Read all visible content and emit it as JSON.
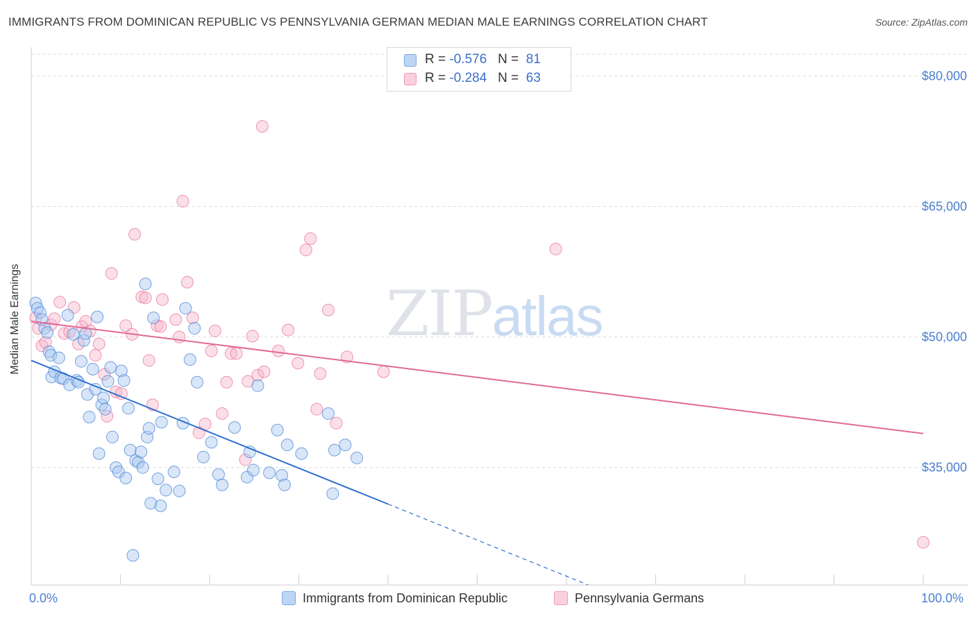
{
  "header": {
    "title": "IMMIGRANTS FROM DOMINICAN REPUBLIC VS PENNSYLVANIA GERMAN MEDIAN MALE EARNINGS CORRELATION CHART",
    "source": "Source: ZipAtlas.com"
  },
  "watermark": {
    "zip": "ZIP",
    "atlas": "atlas"
  },
  "legend_top": {
    "rows": [
      {
        "r_label": "R =",
        "r_value": "-0.576",
        "n_label": "N =",
        "n_value": "81",
        "color": "#a9c8f0"
      },
      {
        "r_label": "R =",
        "r_value": "-0.284",
        "n_label": "N =",
        "n_value": "63",
        "color": "#f6b8cb"
      }
    ]
  },
  "legend_bottom": {
    "items": [
      {
        "label": "Immigrants from Dominican Republic",
        "color": "#a9c8f0"
      },
      {
        "label": "Pennsylvania Germans",
        "color": "#f6b8cb"
      }
    ]
  },
  "chart_data": {
    "type": "scatter",
    "title": "IMMIGRANTS FROM DOMINICAN REPUBLIC VS PENNSYLVANIA GERMAN MEDIAN MALE EARNINGS CORRELATION CHART",
    "xlabel": "",
    "ylabel": "Median Male Earnings",
    "xlim": [
      0,
      100
    ],
    "ylim": [
      21500,
      82500
    ],
    "x_tick_labels": [
      "0.0%",
      "100.0%"
    ],
    "y_ticks": [
      35000,
      50000,
      65000,
      80000
    ],
    "y_tick_labels": [
      "$35,000",
      "$50,000",
      "$65,000",
      "$80,000"
    ],
    "grid": true,
    "colors": {
      "blue": "#4a86d8",
      "blue_fill": "rgba(169,200,240,0.45)",
      "pink": "#e8749c",
      "pink_fill": "rgba(246,184,203,0.45)",
      "blue_line": "#2f6fd0",
      "pink_line": "#e06a95",
      "grid": "#dcdcdc"
    },
    "series": [
      {
        "name": "Immigrants from Dominican Republic",
        "trend": {
          "x0": 0,
          "y0": 47300,
          "x1": 40,
          "y1": 30800,
          "dashed_to_x": 68,
          "dashed_to_y": 19200
        },
        "points": [
          [
            0.5,
            53.9
          ],
          [
            0.7,
            53.3
          ],
          [
            1.0,
            52.8
          ],
          [
            1.2,
            52.0
          ],
          [
            1.5,
            51.0
          ],
          [
            1.8,
            50.5
          ],
          [
            2.0,
            48.3
          ],
          [
            2.2,
            47.9
          ],
          [
            2.3,
            45.4
          ],
          [
            2.6,
            46.0
          ],
          [
            3.1,
            47.6
          ],
          [
            3.3,
            45.3
          ],
          [
            3.6,
            45.2
          ],
          [
            4.1,
            52.5
          ],
          [
            4.3,
            44.5
          ],
          [
            4.7,
            50.3
          ],
          [
            5.1,
            45.0
          ],
          [
            5.3,
            44.8
          ],
          [
            5.6,
            47.2
          ],
          [
            5.9,
            49.6
          ],
          [
            6.1,
            50.4
          ],
          [
            6.3,
            43.4
          ],
          [
            6.5,
            40.8
          ],
          [
            6.9,
            46.3
          ],
          [
            7.2,
            44.0
          ],
          [
            7.6,
            36.6
          ],
          [
            7.9,
            42.2
          ],
          [
            8.1,
            43.0
          ],
          [
            8.3,
            41.7
          ],
          [
            8.6,
            44.9
          ],
          [
            8.9,
            46.5
          ],
          [
            9.1,
            38.5
          ],
          [
            9.5,
            35.0
          ],
          [
            9.8,
            34.5
          ],
          [
            10.1,
            46.1
          ],
          [
            10.4,
            45.0
          ],
          [
            10.6,
            33.8
          ],
          [
            10.9,
            41.8
          ],
          [
            11.1,
            37.0
          ],
          [
            11.4,
            24.9
          ],
          [
            11.7,
            35.8
          ],
          [
            12.0,
            35.6
          ],
          [
            12.3,
            36.8
          ],
          [
            12.5,
            35.0
          ],
          [
            12.8,
            56.1
          ],
          [
            13.0,
            38.5
          ],
          [
            13.2,
            39.5
          ],
          [
            13.7,
            52.2
          ],
          [
            14.2,
            33.7
          ],
          [
            14.6,
            40.2
          ],
          [
            15.1,
            32.4
          ],
          [
            14.5,
            30.6
          ],
          [
            16.0,
            34.5
          ],
          [
            16.6,
            32.3
          ],
          [
            17.0,
            40.1
          ],
          [
            17.3,
            53.3
          ],
          [
            17.8,
            47.4
          ],
          [
            18.3,
            51.0
          ],
          [
            18.6,
            44.8
          ],
          [
            19.3,
            36.2
          ],
          [
            20.2,
            37.9
          ],
          [
            21.0,
            34.2
          ],
          [
            21.4,
            33.0
          ],
          [
            22.8,
            39.6
          ],
          [
            24.2,
            33.9
          ],
          [
            24.9,
            34.7
          ],
          [
            25.4,
            44.4
          ],
          [
            26.7,
            34.4
          ],
          [
            27.6,
            39.3
          ],
          [
            28.1,
            34.1
          ],
          [
            28.4,
            33.0
          ],
          [
            28.7,
            37.6
          ],
          [
            30.3,
            36.6
          ],
          [
            33.3,
            41.2
          ],
          [
            33.8,
            32.0
          ],
          [
            34.0,
            37.0
          ],
          [
            35.2,
            37.6
          ],
          [
            36.5,
            36.1
          ],
          [
            24.5,
            36.8
          ],
          [
            13.4,
            30.9
          ],
          [
            7.4,
            52.3
          ]
        ]
      },
      {
        "name": "Pennsylvania Germans",
        "trend": {
          "x0": 0,
          "y0": 51800,
          "x1": 100,
          "y1": 38900
        },
        "points": [
          [
            0.5,
            52.2
          ],
          [
            0.8,
            51.0
          ],
          [
            1.2,
            49.0
          ],
          [
            1.6,
            49.4
          ],
          [
            2.2,
            51.4
          ],
          [
            2.6,
            52.1
          ],
          [
            3.2,
            54.0
          ],
          [
            3.7,
            50.4
          ],
          [
            4.3,
            50.6
          ],
          [
            4.8,
            53.4
          ],
          [
            5.3,
            49.2
          ],
          [
            5.7,
            51.2
          ],
          [
            6.1,
            51.8
          ],
          [
            6.6,
            50.7
          ],
          [
            7.2,
            47.9
          ],
          [
            7.6,
            49.2
          ],
          [
            8.2,
            45.7
          ],
          [
            8.5,
            40.9
          ],
          [
            9.0,
            57.3
          ],
          [
            9.5,
            43.7
          ],
          [
            10.1,
            43.5
          ],
          [
            10.6,
            51.3
          ],
          [
            11.3,
            50.3
          ],
          [
            11.6,
            61.8
          ],
          [
            12.4,
            54.6
          ],
          [
            12.8,
            54.5
          ],
          [
            13.2,
            47.3
          ],
          [
            13.6,
            42.2
          ],
          [
            14.1,
            51.3
          ],
          [
            14.5,
            51.2
          ],
          [
            14.7,
            54.3
          ],
          [
            16.2,
            52.0
          ],
          [
            16.6,
            50.0
          ],
          [
            17.0,
            65.6
          ],
          [
            17.5,
            56.3
          ],
          [
            18.1,
            52.2
          ],
          [
            18.8,
            39.0
          ],
          [
            19.5,
            40.0
          ],
          [
            20.2,
            48.4
          ],
          [
            20.6,
            50.7
          ],
          [
            21.4,
            41.2
          ],
          [
            21.9,
            44.8
          ],
          [
            22.4,
            48.1
          ],
          [
            23.0,
            48.1
          ],
          [
            24.0,
            35.9
          ],
          [
            24.3,
            44.9
          ],
          [
            24.8,
            50.1
          ],
          [
            25.4,
            45.6
          ],
          [
            25.9,
            74.2
          ],
          [
            26.1,
            46.0
          ],
          [
            27.7,
            48.4
          ],
          [
            28.8,
            50.8
          ],
          [
            29.9,
            47.0
          ],
          [
            30.8,
            60.0
          ],
          [
            31.3,
            61.3
          ],
          [
            32.0,
            41.7
          ],
          [
            32.4,
            45.8
          ],
          [
            33.3,
            53.1
          ],
          [
            34.2,
            40.1
          ],
          [
            35.4,
            47.7
          ],
          [
            39.5,
            46.0
          ],
          [
            58.8,
            60.1
          ],
          [
            100.0,
            26.4
          ]
        ]
      }
    ]
  }
}
